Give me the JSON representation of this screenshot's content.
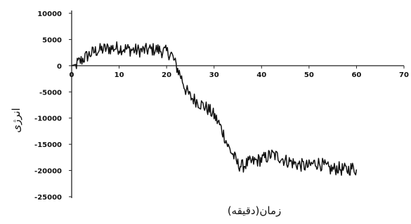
{
  "chart_data": {
    "type": "line",
    "title": "",
    "xlabel": "زمان(دقیقه)",
    "ylabel": "انرژی",
    "xlim": [
      0,
      70
    ],
    "ylim": [
      -25000,
      10000
    ],
    "x_ticks": [
      "0",
      "10",
      "20",
      "30",
      "40",
      "50",
      "60",
      "70"
    ],
    "y_ticks": [
      "10000",
      "5000",
      "0",
      "-5000",
      "-10000",
      "-15000",
      "-20000",
      "-25000"
    ],
    "grid": false,
    "legend": "none",
    "series": [
      {
        "x": [
          0,
          1,
          2,
          3,
          4,
          5,
          6,
          7,
          8,
          9,
          10,
          11,
          12,
          13,
          14,
          15,
          16,
          17,
          18,
          19,
          20,
          21,
          22,
          23,
          24,
          25,
          26,
          27,
          28,
          29,
          30,
          31,
          32,
          33,
          34,
          35,
          36,
          37,
          38,
          39,
          40,
          41,
          42,
          43,
          44,
          45,
          46,
          47,
          48,
          49,
          50,
          51,
          52,
          53,
          54,
          55,
          56,
          57,
          58,
          59,
          60
        ],
        "values": [
          0,
          300,
          1000,
          1700,
          2300,
          2800,
          3000,
          3200,
          3300,
          3400,
          3400,
          3300,
          3100,
          3000,
          2900,
          2900,
          3000,
          3100,
          3100,
          2800,
          2600,
          2200,
          0,
          -2000,
          -4500,
          -6000,
          -6500,
          -7200,
          -7800,
          -8500,
          -9500,
          -11000,
          -13000,
          -15500,
          -17000,
          -18800,
          -19200,
          -18600,
          -18400,
          -18100,
          -17900,
          -17500,
          -17000,
          -17200,
          -17500,
          -18100,
          -18300,
          -18700,
          -18900,
          -19100,
          -19200,
          -18600,
          -18600,
          -19000,
          -19600,
          -19800,
          -19500,
          -19800,
          -19900,
          -19500,
          -19800
        ],
        "color": "#111111"
      }
    ]
  }
}
